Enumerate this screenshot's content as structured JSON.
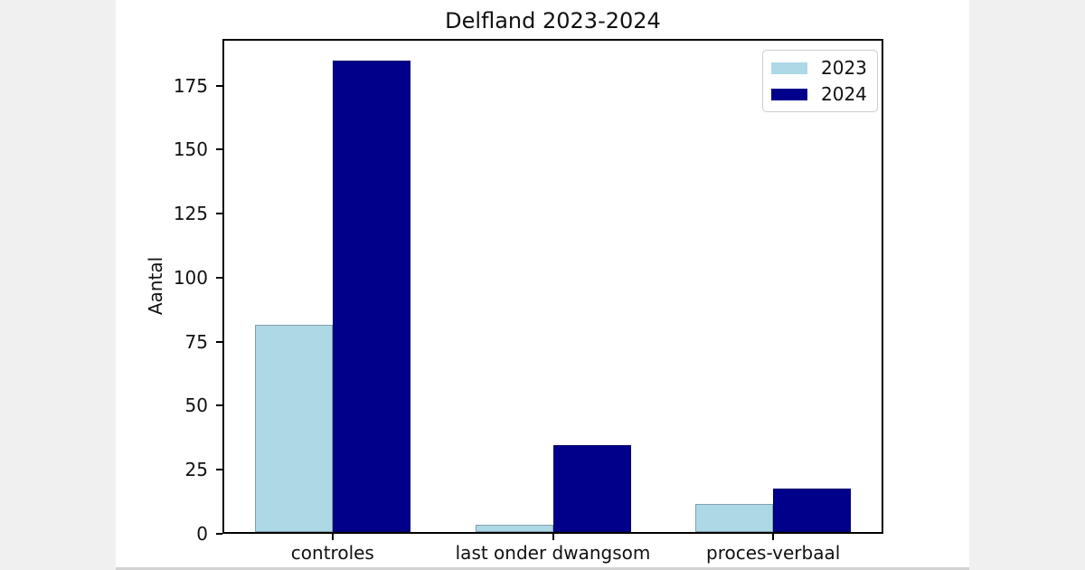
{
  "page": {
    "margin_background": "#f0f0f0",
    "canvas_background": "#ffffff",
    "bottom_strip_color": "#d2d2d2"
  },
  "chart_data": {
    "type": "bar",
    "title": "Delfland 2023-2024",
    "xlabel": "",
    "ylabel": "Aantal",
    "categories": [
      "controles",
      "last onder dwangsom",
      "proces-verbaal"
    ],
    "series": [
      {
        "name": "2023",
        "color": "#ADD8E6",
        "values": [
          81,
          3,
          11
        ]
      },
      {
        "name": "2024",
        "color": "#00008B",
        "values": [
          184,
          34,
          17
        ]
      }
    ],
    "ylim": [
      0,
      193.2
    ],
    "yticks": [
      0,
      25,
      50,
      75,
      100,
      125,
      150,
      175
    ],
    "grid": false,
    "legend_position": "upper right"
  }
}
